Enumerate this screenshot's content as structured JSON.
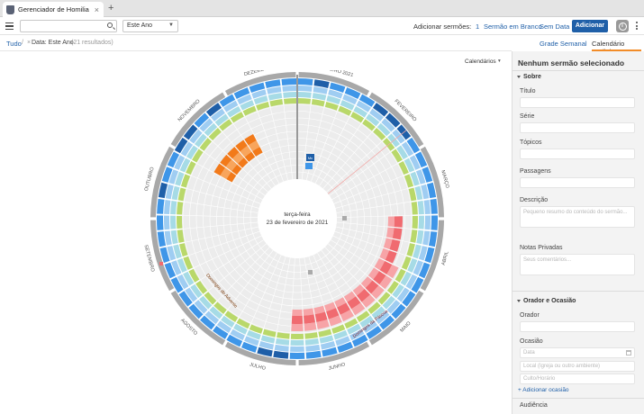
{
  "browser": {
    "tab_title": "Gerenciador de Homilia"
  },
  "toolbar": {
    "search": {
      "value": "",
      "placeholder": ""
    },
    "filter_select": {
      "selected": "Este Ano"
    },
    "add_sermons_label": "Adicionar sermões:",
    "blank_count": "1",
    "blank_sermon_label": "Sermão em Branco",
    "no_date_label": "Sem Data",
    "add_button": "Adicionar"
  },
  "breadcrumb": {
    "all": "Tudo",
    "separator": "/",
    "remove": "×",
    "filter": "Data: Este Ano",
    "count": "(21 resultados)"
  },
  "views": {
    "weekly": "Grade Semanal",
    "radial": "Calendário Radial",
    "active": "radial"
  },
  "calendars_dropdown": {
    "label": "Calendários",
    "caret": "▾"
  },
  "radial": {
    "center_line1": "terça-feira",
    "center_line2": "23 de fevereiro de 2021",
    "months": [
      "JANEIRO 2021",
      "FEVEREIRO",
      "MARÇO",
      "ABRIL",
      "MAIO",
      "JUNHO",
      "JULHO",
      "AGOSTO",
      "SETEMBRO",
      "OUTUBRO",
      "NOVEMBRO",
      "DEZEMBRO"
    ],
    "season_labels": {
      "red": "Domingos da Páscoa",
      "orange": "Domingos do Advento",
      "sermon": "Mc"
    },
    "colors": {
      "grid": "#ececec",
      "grid_line": "#ffffff",
      "blue_outer": "#3f96e8",
      "blue_dark": "#1f5fa8",
      "blue_light": "#9fcdf2",
      "teal": "#a6dbe6",
      "green": "#b9d86a",
      "gray_ring": "#a8a8a8",
      "red": "#f06b70",
      "red_light": "#f7a4a7",
      "orange": "#f27a1a",
      "orange_light": "#f8a55c"
    }
  },
  "panel": {
    "title": "Nenhum sermão selecionado",
    "about_section": "Sobre",
    "title_label": "Título",
    "series_label": "Série",
    "topics_label": "Tópicos",
    "passages_label": "Passagens",
    "description_label": "Descrição",
    "description_placeholder": "Pequeno resumo do conteúdo do sermão...",
    "private_notes_label": "Notas Privadas",
    "private_notes_placeholder": "Seus comentários...",
    "speaker_section": "Orador e Ocasião",
    "speaker_label": "Orador",
    "occasion_label": "Ocasião",
    "date_placeholder": "Data",
    "location_placeholder": "Local (Igreja ou outro ambiente)",
    "service_placeholder": "Culto/Horário",
    "add_occasion_link": "+ Adicionar ocasião",
    "audience_label": "Audiência"
  }
}
